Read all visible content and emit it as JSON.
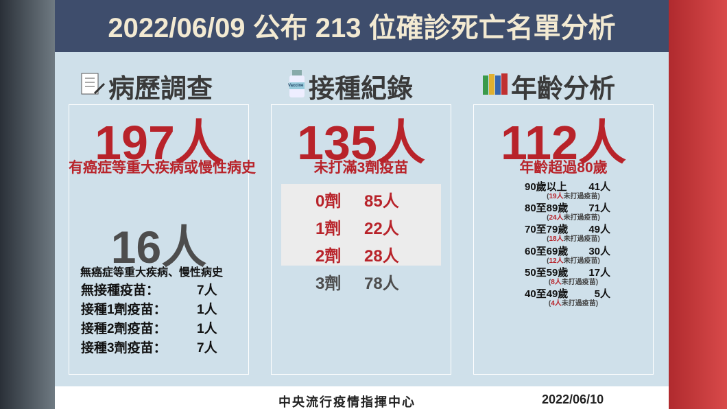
{
  "header": {
    "title": "2022/06/09 公布 213 位確診死亡名單分析"
  },
  "columns": [
    {
      "heading": "病歷調查",
      "main_count": "197人",
      "main_desc": "有癌症等重大疾病或慢性病史",
      "second_count": "16人",
      "second_desc": "無癌症等重大疾病、慢性病史",
      "rows": [
        {
          "label": "無接種疫苗：",
          "count": "7人"
        },
        {
          "label": "接種1劑疫苗：",
          "count": "1人"
        },
        {
          "label": "接種2劑疫苗：",
          "count": "1人"
        },
        {
          "label": "接種3劑疫苗：",
          "count": "7人"
        }
      ]
    },
    {
      "heading": "接種紀錄",
      "icon_label": "Vaccine",
      "main_count": "135人",
      "main_desc": "未打滿3劑疫苗",
      "rows": [
        {
          "label": "0劑",
          "count": "85人"
        },
        {
          "label": "1劑",
          "count": "22人"
        },
        {
          "label": "2劑",
          "count": "28人"
        },
        {
          "label": "3劑",
          "count": "78人"
        }
      ]
    },
    {
      "heading": "年齡分析",
      "main_count": "112人",
      "main_desc": "年齡超過80歲",
      "rows": [
        {
          "label": "90歲以上",
          "count": "41人",
          "note_prefix": "(",
          "note_count": "19人",
          "note_text": "未打過疫苗)"
        },
        {
          "label": "80至89歲",
          "count": "71人",
          "note_prefix": "(",
          "note_count": "24人",
          "note_text": "未打過疫苗)"
        },
        {
          "label": "70至79歲",
          "count": "49人",
          "note_prefix": "(",
          "note_count": "18人",
          "note_text": "未打過疫苗)"
        },
        {
          "label": "60至69歲",
          "count": "30人",
          "note_prefix": "(",
          "note_count": "12人",
          "note_text": "未打過疫苗)"
        },
        {
          "label": "50至59歲",
          "count": "17人",
          "note_prefix": "(",
          "note_count": "8人",
          "note_text": "未打過疫苗)"
        },
        {
          "label": "40至49歲",
          "count": "5人",
          "note_prefix": "(",
          "note_count": "4人",
          "note_text": "未打過疫苗)"
        }
      ]
    }
  ],
  "footer": {
    "source": "中央流行疫情指揮中心",
    "date": "2022/06/10"
  }
}
